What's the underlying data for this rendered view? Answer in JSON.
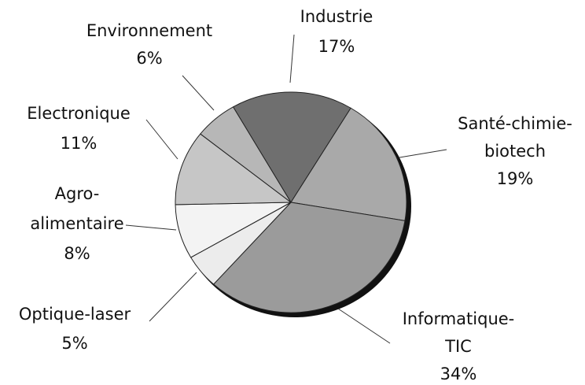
{
  "chart_data": {
    "type": "pie",
    "categories": [
      "Industrie",
      "Santé-chimie-\nbiotech",
      "Informatique-\nTIC",
      "Optique-laser",
      "Agro-\nalimentaire",
      "Electronique",
      "Environnement"
    ],
    "values": [
      17,
      19,
      34,
      5,
      8,
      11,
      6
    ],
    "value_labels": [
      "17%",
      "19%",
      "34%",
      "5%",
      "8%",
      "11%",
      "6%"
    ],
    "colors": [
      "#6f6f6f",
      "#a9a9a9",
      "#9b9b9b",
      "#ececec",
      "#f3f3f3",
      "#c6c6c6",
      "#b7b7b7"
    ]
  }
}
